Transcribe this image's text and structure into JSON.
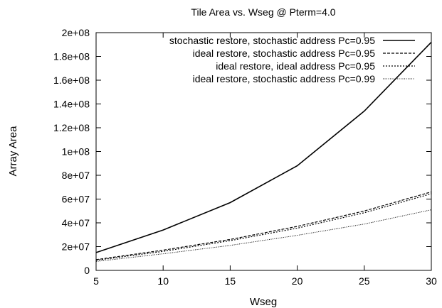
{
  "chart_data": {
    "type": "line",
    "title": "Tile Area vs. Wseg @ Pterm=4.0",
    "xlabel": "Wseg",
    "ylabel": "Array Area",
    "xlim": [
      5,
      30
    ],
    "ylim": [
      0,
      200000000
    ],
    "x_ticks": [
      5,
      10,
      15,
      20,
      25,
      30
    ],
    "y_ticks": [
      0,
      20000000,
      40000000,
      60000000,
      80000000,
      100000000,
      120000000,
      140000000,
      160000000,
      180000000,
      200000000
    ],
    "x_tick_labels": [
      "5",
      "10",
      "15",
      "20",
      "25",
      "30"
    ],
    "y_tick_labels": [
      "0",
      "2e+07",
      "4e+07",
      "6e+07",
      "8e+07",
      "1e+08",
      "1.2e+08",
      "1.4e+08",
      "1.6e+08",
      "1.8e+08",
      "2e+08"
    ],
    "grid": false,
    "legend_position": "top-right",
    "x": [
      5,
      10,
      15,
      20,
      25,
      30
    ],
    "series": [
      {
        "name": "stochastic restore, stochastic address Pc=0.95",
        "style": "solid",
        "values": [
          15000000,
          34000000,
          57000000,
          88000000,
          134000000,
          192000000
        ]
      },
      {
        "name": "ideal restore, stochastic address Pc=0.95",
        "style": "dashed",
        "values": [
          9000000,
          17000000,
          26000000,
          37000000,
          50000000,
          66000000
        ]
      },
      {
        "name": "ideal restore, ideal address Pc=0.95",
        "style": "dotted",
        "values": [
          8500000,
          16000000,
          25000000,
          35500000,
          48500000,
          64500000
        ]
      },
      {
        "name": "ideal restore, stochastic address Pc=0.99",
        "style": "fine-dotted",
        "values": [
          7500000,
          14000000,
          21000000,
          29500000,
          39000000,
          51000000
        ]
      }
    ]
  }
}
